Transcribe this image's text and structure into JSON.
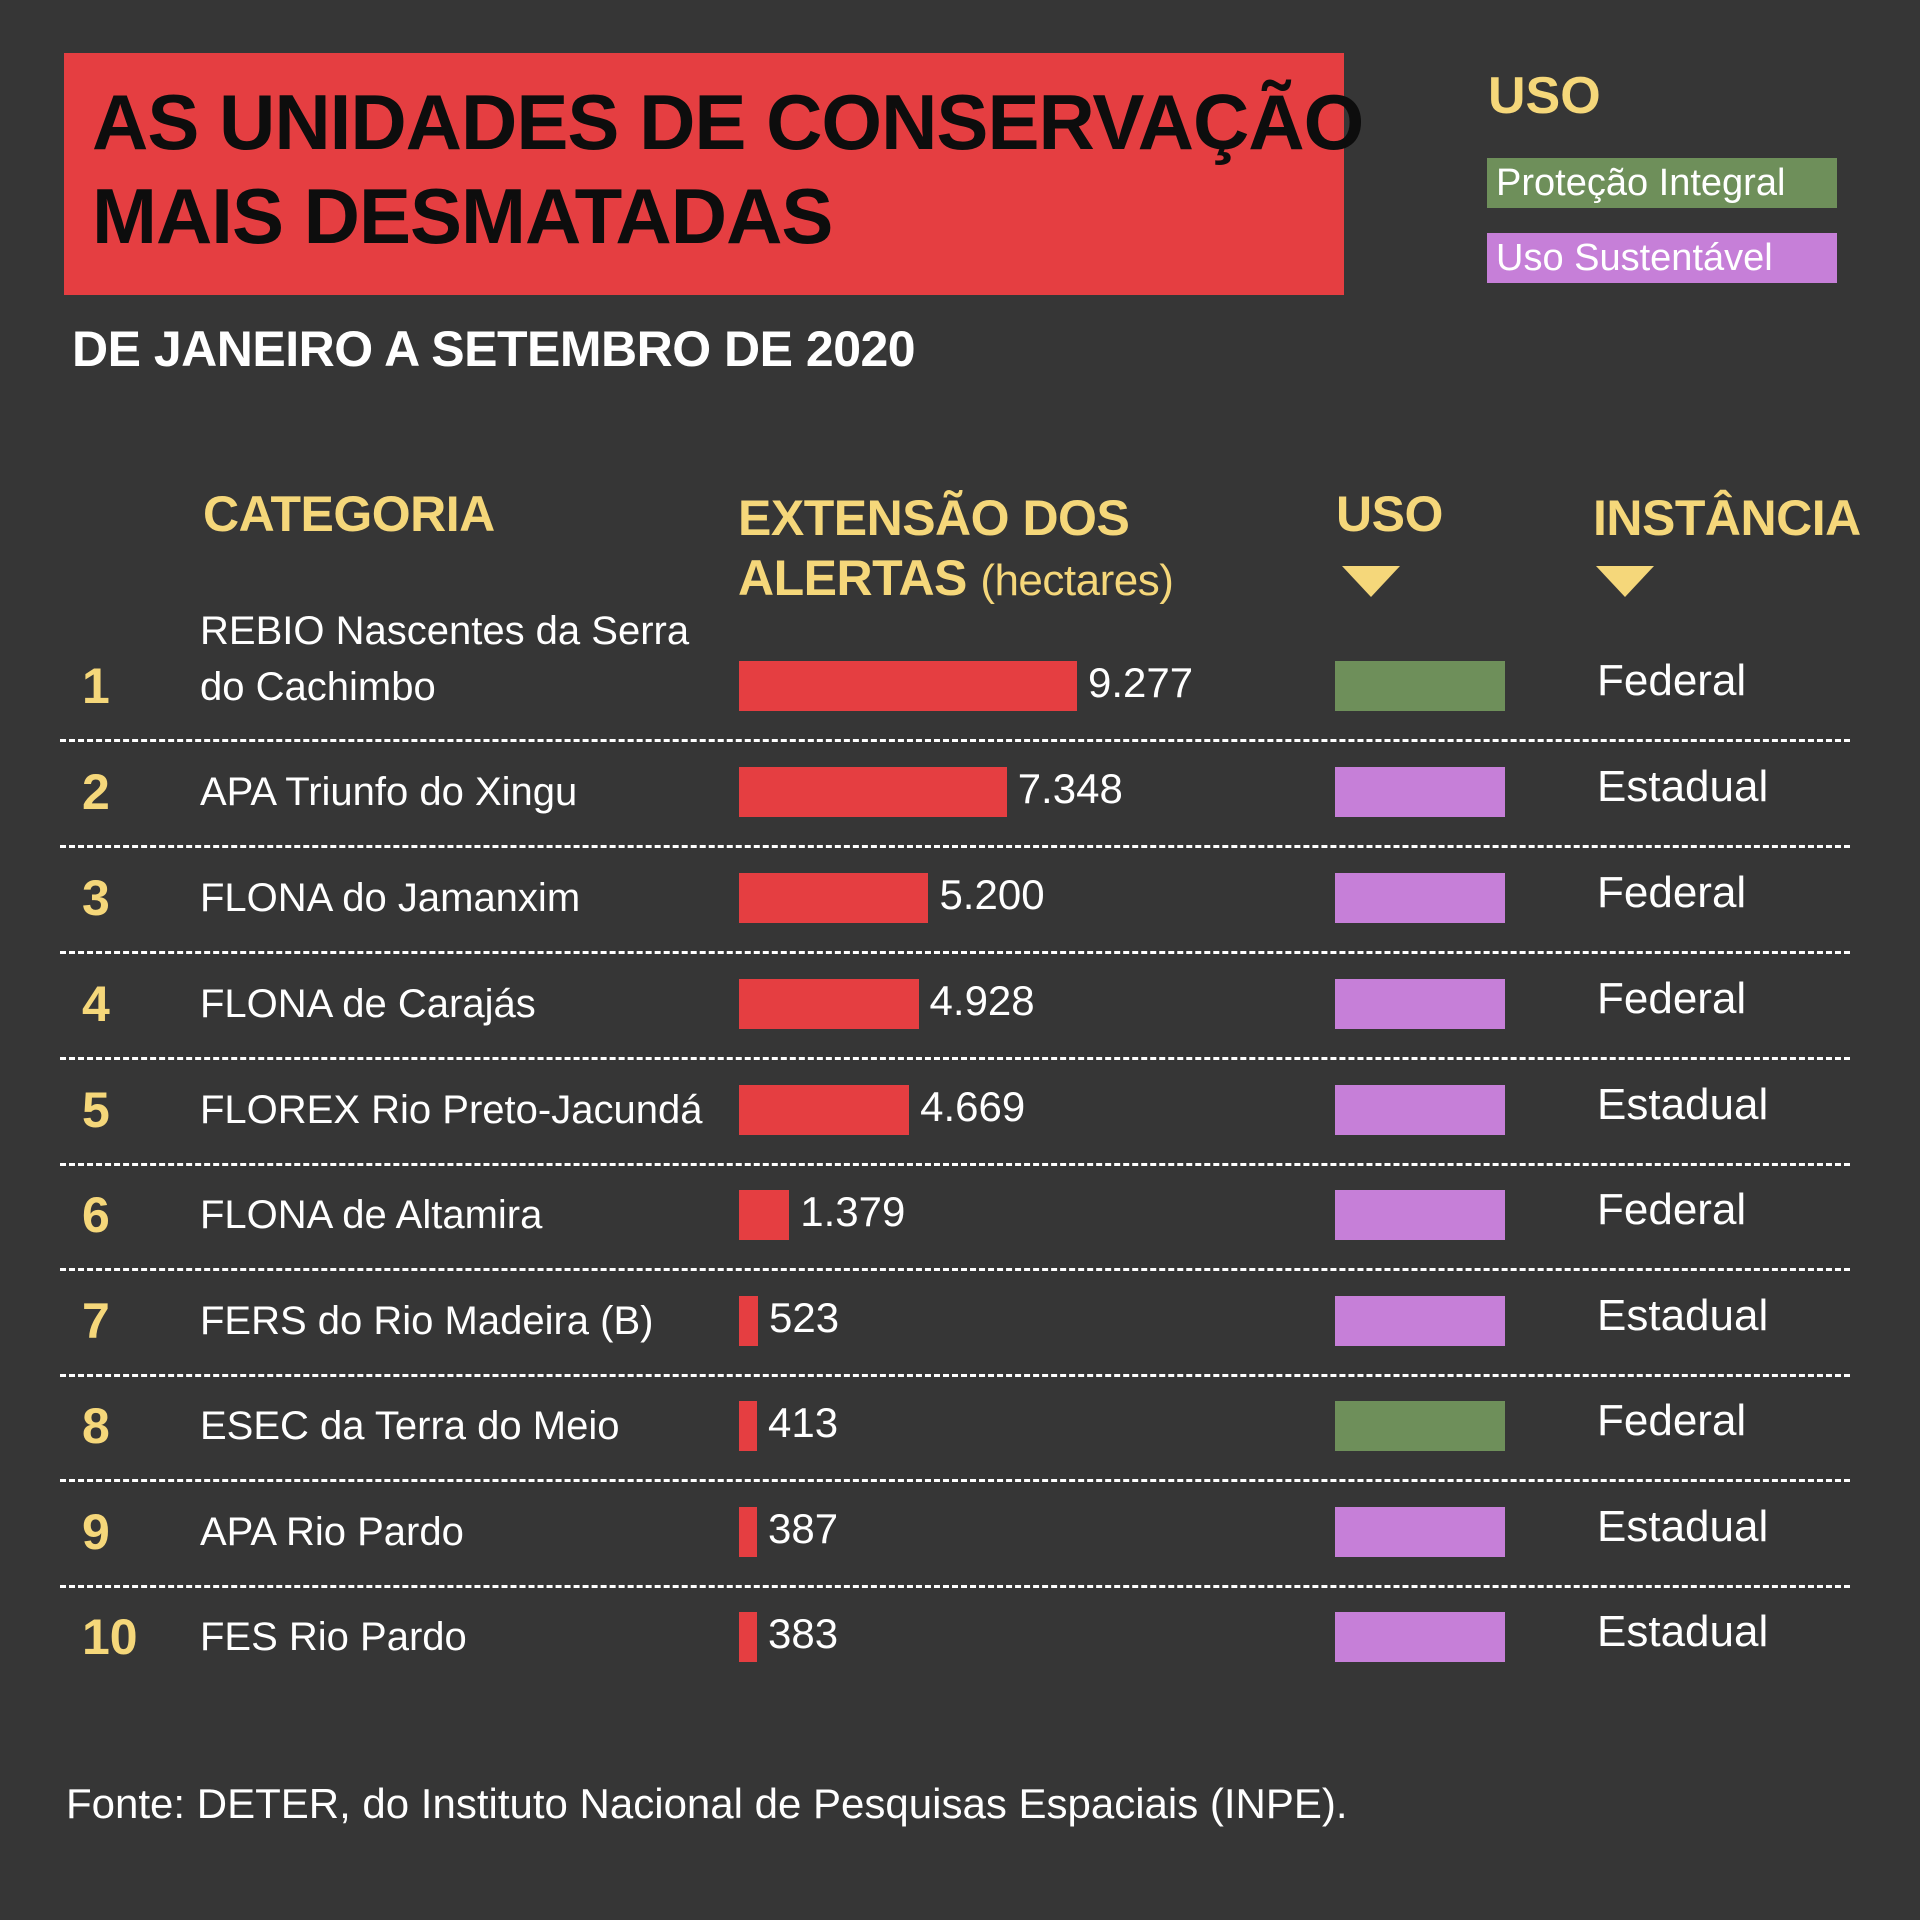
{
  "title": [
    "AS UNIDADES DE CONSERVAÇÃO",
    "MAIS DESMATADAS"
  ],
  "subtitle": "DE JANEIRO A SETEMBRO DE 2020",
  "legend": {
    "title": "USO",
    "items": [
      {
        "label": "Proteção Integral",
        "color": "#6e8f5a"
      },
      {
        "label": "Uso Sustentável",
        "color": "#c67fd8"
      }
    ]
  },
  "headers": {
    "categoria": "CATEGORIA",
    "extensao_line1": "EXTENSÃO DOS",
    "extensao_line2": "ALERTAS",
    "extensao_unit": "(hectares)",
    "uso": "USO",
    "instancia": "INSTÂNCIA"
  },
  "colors": {
    "bar": "#e53e41",
    "background": "#363636",
    "header": "#f5d77a",
    "protecao_integral": "#6e8f5a",
    "uso_sustentavel": "#c67fd8"
  },
  "chart_data": {
    "type": "bar",
    "title": "AS UNIDADES DE CONSERVAÇÃO MAIS DESMATADAS",
    "subtitle": "DE JANEIRO A SETEMBRO DE 2020",
    "xlabel": "EXTENSÃO DOS ALERTAS (hectares)",
    "ylabel": "",
    "xlim": [
      0,
      9277
    ],
    "categories": [
      "REBIO Nascentes da Serra do Cachimbo",
      "APA Triunfo do Xingu",
      "FLONA do Jamanxim",
      "FLONA de Carajás",
      "FLOREX Rio Preto-Jacundá",
      "FLONA de Altamira",
      "FERS do Rio Madeira (B)",
      "ESEC da Terra do Meio",
      "APA Rio Pardo",
      "FES Rio Pardo"
    ],
    "values": [
      9277,
      7348,
      5200,
      4928,
      4669,
      1379,
      523,
      413,
      387,
      383
    ],
    "rows": [
      {
        "rank": "1",
        "name": "REBIO Nascentes da Serra do Cachimbo",
        "value": 9277,
        "value_label": "9.277",
        "uso": "Proteção Integral",
        "instancia": "Federal"
      },
      {
        "rank": "2",
        "name": "APA Triunfo do Xingu",
        "value": 7348,
        "value_label": "7.348",
        "uso": "Uso Sustentável",
        "instancia": "Estadual"
      },
      {
        "rank": "3",
        "name": "FLONA do Jamanxim",
        "value": 5200,
        "value_label": "5.200",
        "uso": "Uso Sustentável",
        "instancia": "Federal"
      },
      {
        "rank": "4",
        "name": "FLONA de Carajás",
        "value": 4928,
        "value_label": "4.928",
        "uso": "Uso Sustentável",
        "instancia": "Federal"
      },
      {
        "rank": "5",
        "name": "FLOREX Rio Preto-Jacundá",
        "value": 4669,
        "value_label": "4.669",
        "uso": "Uso Sustentável",
        "instancia": "Estadual"
      },
      {
        "rank": "6",
        "name": "FLONA de Altamira",
        "value": 1379,
        "value_label": "1.379",
        "uso": "Uso Sustentável",
        "instancia": "Federal"
      },
      {
        "rank": "7",
        "name": "FERS do Rio Madeira (B)",
        "value": 523,
        "value_label": "523",
        "uso": "Uso Sustentável",
        "instancia": "Estadual"
      },
      {
        "rank": "8",
        "name": "ESEC da Terra do Meio",
        "value": 413,
        "value_label": "413",
        "uso": "Proteção Integral",
        "instancia": "Federal"
      },
      {
        "rank": "9",
        "name": "APA Rio Pardo",
        "value": 387,
        "value_label": "387",
        "uso": "Uso Sustentável",
        "instancia": "Estadual"
      },
      {
        "rank": "10",
        "name": "FES Rio Pardo",
        "value": 383,
        "value_label": "383",
        "uso": "Uso Sustentável",
        "instancia": "Estadual"
      }
    ]
  },
  "source": "Fonte: DETER, do Instituto Nacional de Pesquisas Espaciais (INPE)."
}
